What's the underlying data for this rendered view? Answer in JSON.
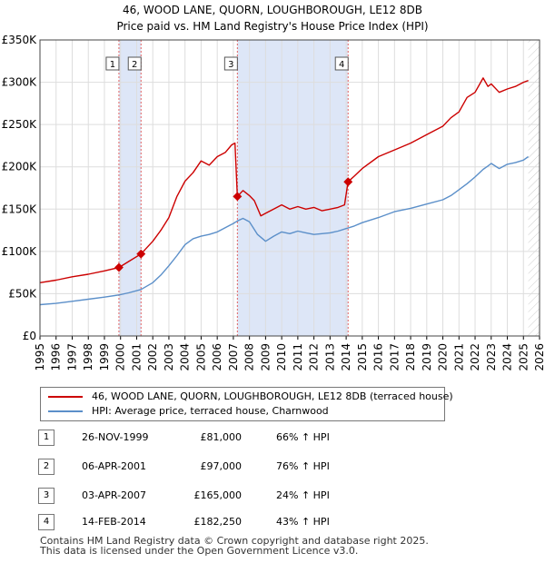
{
  "chart_data": {
    "type": "line",
    "title": "46, WOOD LANE, QUORN, LOUGHBOROUGH, LE12 8DB",
    "subtitle": "Price paid vs. HM Land Registry's House Price Index (HPI)",
    "xlabel": "",
    "ylabel": "",
    "xlim": [
      1995,
      2026
    ],
    "ylim": [
      0,
      350000
    ],
    "y_ticks": [
      {
        "value": 0,
        "label": "£0"
      },
      {
        "value": 50000,
        "label": "£50K"
      },
      {
        "value": 100000,
        "label": "£100K"
      },
      {
        "value": 150000,
        "label": "£150K"
      },
      {
        "value": 200000,
        "label": "£200K"
      },
      {
        "value": 250000,
        "label": "£250K"
      },
      {
        "value": 300000,
        "label": "£300K"
      },
      {
        "value": 350000,
        "label": "£350K"
      }
    ],
    "x_ticks": [
      "1995",
      "1996",
      "1997",
      "1998",
      "1999",
      "2000",
      "2001",
      "2002",
      "2003",
      "2004",
      "2005",
      "2006",
      "2007",
      "2008",
      "2009",
      "2010",
      "2011",
      "2012",
      "2013",
      "2014",
      "2015",
      "2016",
      "2017",
      "2018",
      "2019",
      "2020",
      "2021",
      "2022",
      "2023",
      "2024",
      "2025",
      "2026"
    ],
    "grid": true,
    "colors": {
      "property": "#cc0000",
      "hpi": "#5b8fc9",
      "shade": "#dde6f7",
      "grid": "#dddddd",
      "vline": "#e06060"
    },
    "series": [
      {
        "name": "46, WOOD LANE, QUORN, LOUGHBOROUGH, LE12 8DB (terraced house)",
        "x": [
          1995.0,
          1996.0,
          1997.0,
          1998.0,
          1999.0,
          1999.9,
          2000.5,
          2001.27,
          2002.0,
          2002.5,
          2003.0,
          2003.5,
          2004.0,
          2004.5,
          2005.0,
          2005.5,
          2006.0,
          2006.5,
          2006.9,
          2007.1,
          2007.25,
          2007.6,
          2008.0,
          2008.3,
          2008.7,
          2009.0,
          2009.5,
          2010.0,
          2010.5,
          2011.0,
          2011.5,
          2012.0,
          2012.5,
          2013.0,
          2013.5,
          2013.9,
          2014.12,
          2014.5,
          2015.0,
          2016.0,
          2017.0,
          2018.0,
          2019.0,
          2020.0,
          2020.5,
          2021.0,
          2021.5,
          2022.0,
          2022.5,
          2022.8,
          2023.0,
          2023.5,
          2024.0,
          2024.5,
          2025.0,
          2025.3
        ],
        "values": [
          63000,
          66000,
          70000,
          73000,
          77000,
          81000,
          88000,
          97000,
          112000,
          125000,
          140000,
          165000,
          183000,
          193000,
          207000,
          202000,
          212000,
          217000,
          226000,
          228000,
          165000,
          172000,
          166000,
          160000,
          142000,
          145000,
          150000,
          155000,
          150000,
          153000,
          150000,
          152000,
          148000,
          150000,
          152000,
          155000,
          182250,
          189000,
          198000,
          212000,
          220000,
          228000,
          238000,
          248000,
          258000,
          265000,
          282000,
          288000,
          305000,
          295000,
          298000,
          288000,
          292000,
          295000,
          300000,
          302000
        ]
      },
      {
        "name": "HPI: Average price, terraced house, Charnwood",
        "x": [
          1995.0,
          1996.0,
          1997.0,
          1998.0,
          1999.0,
          1999.9,
          2000.5,
          2001.27,
          2002.0,
          2002.5,
          2003.0,
          2003.5,
          2004.0,
          2004.5,
          2005.0,
          2005.5,
          2006.0,
          2006.5,
          2007.0,
          2007.25,
          2007.6,
          2008.0,
          2008.5,
          2009.0,
          2009.5,
          2010.0,
          2010.5,
          2011.0,
          2011.5,
          2012.0,
          2012.5,
          2013.0,
          2013.5,
          2014.0,
          2014.5,
          2015.0,
          2016.0,
          2017.0,
          2018.0,
          2019.0,
          2020.0,
          2020.5,
          2021.0,
          2021.5,
          2022.0,
          2022.5,
          2022.8,
          2023.0,
          2023.5,
          2024.0,
          2024.5,
          2025.0,
          2025.3
        ],
        "values": [
          37000,
          38500,
          41000,
          43500,
          46000,
          48500,
          51000,
          55000,
          63000,
          72000,
          83000,
          95000,
          108000,
          115000,
          118000,
          120000,
          123000,
          128000,
          133000,
          136000,
          139000,
          135000,
          120000,
          112000,
          118000,
          123000,
          121000,
          124000,
          122000,
          120000,
          121000,
          122000,
          124000,
          127000,
          130000,
          134000,
          140000,
          147000,
          151000,
          156000,
          161000,
          166000,
          173000,
          180000,
          188000,
          197000,
          201000,
          204000,
          198000,
          203000,
          205000,
          208000,
          212000
        ]
      }
    ],
    "sales": [
      {
        "id": "1",
        "x": 1999.9,
        "price": 81000,
        "date": "26-NOV-1999",
        "price_label": "£81,000",
        "hpi_label": "66% ↑ HPI"
      },
      {
        "id": "2",
        "x": 2001.27,
        "price": 97000,
        "date": "06-APR-2001",
        "price_label": "£97,000",
        "hpi_label": "76% ↑ HPI"
      },
      {
        "id": "3",
        "x": 2007.25,
        "price": 165000,
        "date": "03-APR-2007",
        "price_label": "£165,000",
        "hpi_label": "24% ↑ HPI"
      },
      {
        "id": "4",
        "x": 2014.12,
        "price": 182250,
        "date": "14-FEB-2014",
        "price_label": "£182,250",
        "hpi_label": "43% ↑ HPI"
      }
    ],
    "shaded_periods": [
      [
        1999.9,
        2001.27
      ],
      [
        2007.25,
        2014.12
      ]
    ],
    "forecast_start": 2025.3
  },
  "legend": {
    "property_label": "46, WOOD LANE, QUORN, LOUGHBOROUGH, LE12 8DB (terraced house)",
    "hpi_label": "HPI: Average price, terraced house, Charnwood"
  },
  "footer": {
    "line1": "Contains HM Land Registry data © Crown copyright and database right 2025.",
    "line2": "This data is licensed under the Open Government Licence v3.0."
  }
}
